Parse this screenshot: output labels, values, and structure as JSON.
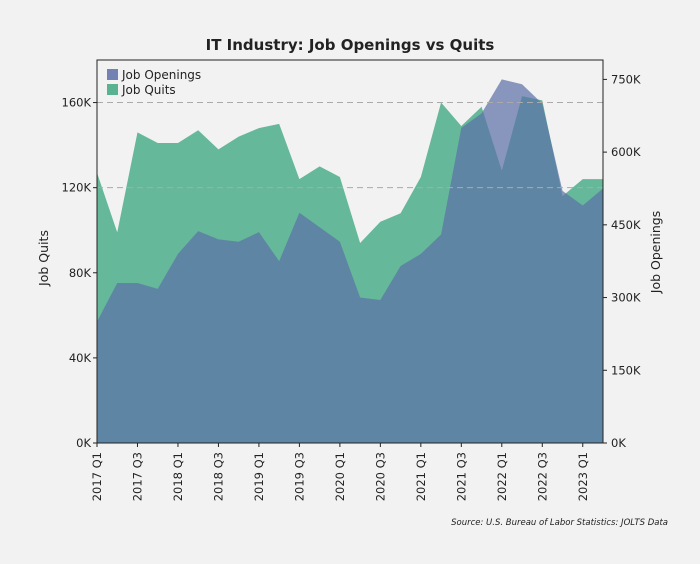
{
  "chart_data": {
    "type": "area",
    "title": "IT Industry: Job Openings vs Quits",
    "source": "Source: U.S. Bureau of Labor Statistics: JOLTS Data",
    "x": [
      "2017 Q1",
      "2017 Q2",
      "2017 Q3",
      "2017 Q4",
      "2018 Q1",
      "2018 Q2",
      "2018 Q3",
      "2018 Q4",
      "2019 Q1",
      "2019 Q2",
      "2019 Q3",
      "2019 Q4",
      "2020 Q1",
      "2020 Q2",
      "2020 Q3",
      "2020 Q4",
      "2021 Q1",
      "2021 Q2",
      "2021 Q3",
      "2021 Q4",
      "2022 Q1",
      "2022 Q2",
      "2022 Q3",
      "2022 Q4",
      "2023 Q1",
      "2023 Q2"
    ],
    "x_tick_labels": [
      "2017 Q1",
      "2017 Q3",
      "2018 Q1",
      "2018 Q3",
      "2019 Q1",
      "2019 Q3",
      "2020 Q1",
      "2020 Q3",
      "2021 Q1",
      "2021 Q3",
      "2022 Q1",
      "2022 Q3",
      "2023 Q1"
    ],
    "series": [
      {
        "name": "Job Openings",
        "axis": "right",
        "color": "#5b6fa8",
        "values": [
          250000,
          330000,
          330000,
          318000,
          390000,
          437000,
          420000,
          415000,
          435000,
          375000,
          475000,
          445000,
          415000,
          300000,
          295000,
          365000,
          390000,
          430000,
          650000,
          680000,
          750000,
          740000,
          700000,
          520000,
          490000,
          525000
        ]
      },
      {
        "name": "Job Quits",
        "axis": "left",
        "color": "#3ea882",
        "values": [
          127000,
          99000,
          146000,
          141000,
          141000,
          147000,
          138000,
          144000,
          148000,
          150000,
          124000,
          130000,
          125000,
          94000,
          104000,
          108000,
          125000,
          160000,
          149000,
          158000,
          128000,
          163000,
          161000,
          116000,
          124000,
          124000
        ]
      }
    ],
    "left_axis": {
      "label": "Job Quits",
      "ticks": [
        "0K",
        "40K",
        "80K",
        "120K",
        "160K"
      ],
      "lim": [
        0,
        180000
      ]
    },
    "right_axis": {
      "label": "Job Openings",
      "ticks": [
        "0K",
        "150K",
        "300K",
        "450K",
        "600K",
        "750K"
      ],
      "lim": [
        0,
        790000
      ]
    },
    "grid": "dashed horizontal lines at 120K and 160K",
    "legend": "top-left",
    "background": "#f2f2f2"
  }
}
